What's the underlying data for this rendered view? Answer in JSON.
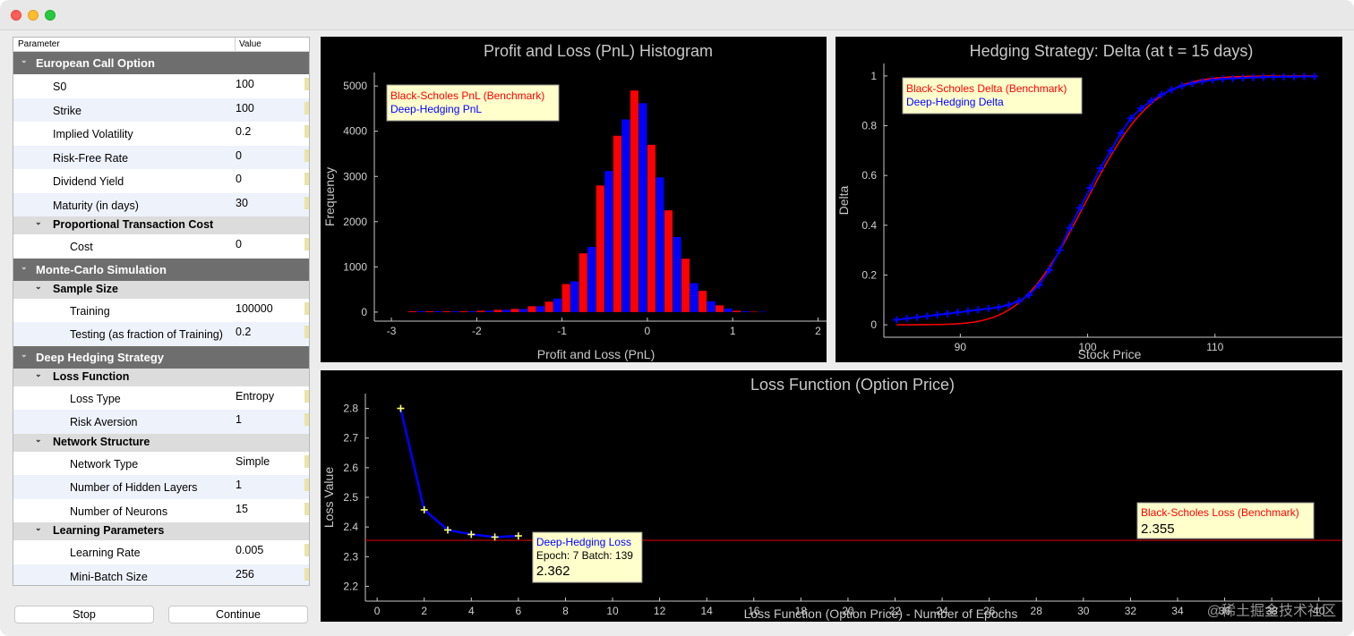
{
  "window": {
    "close": "close",
    "minimize": "minimize",
    "maximize": "maximize"
  },
  "tree": {
    "headers": {
      "parameter": "Parameter",
      "value": "Value"
    },
    "rows": [
      {
        "kind": "group",
        "label": "European Call Option",
        "depth": 0
      },
      {
        "kind": "item",
        "label": "S0",
        "value": "100",
        "depth": 1
      },
      {
        "kind": "item",
        "label": "Strike",
        "value": "100",
        "depth": 1
      },
      {
        "kind": "item",
        "label": "Implied Volatility",
        "value": "0.2",
        "depth": 1
      },
      {
        "kind": "item",
        "label": "Risk-Free Rate",
        "value": "0",
        "depth": 1
      },
      {
        "kind": "item",
        "label": "Dividend Yield",
        "value": "0",
        "depth": 1
      },
      {
        "kind": "item",
        "label": "Maturity (in days)",
        "value": "30",
        "depth": 1
      },
      {
        "kind": "sub",
        "label": "Proportional Transaction Cost",
        "depth": 1
      },
      {
        "kind": "item",
        "label": "Cost",
        "value": "0",
        "depth": 2
      },
      {
        "kind": "group",
        "label": "Monte-Carlo Simulation",
        "depth": 0
      },
      {
        "kind": "sub",
        "label": "Sample Size",
        "depth": 1
      },
      {
        "kind": "item",
        "label": "Training",
        "value": "100000",
        "depth": 2
      },
      {
        "kind": "item",
        "label": "Testing (as fraction of Training)",
        "value": "0.2",
        "depth": 2
      },
      {
        "kind": "group",
        "label": "Deep Hedging Strategy",
        "depth": 0
      },
      {
        "kind": "sub",
        "label": "Loss Function",
        "depth": 1
      },
      {
        "kind": "item",
        "label": "Loss Type",
        "value": "Entropy",
        "depth": 2
      },
      {
        "kind": "item",
        "label": "Risk Aversion",
        "value": "1",
        "depth": 2
      },
      {
        "kind": "sub",
        "label": "Network Structure",
        "depth": 1
      },
      {
        "kind": "item",
        "label": "Network Type",
        "value": "Simple",
        "depth": 2
      },
      {
        "kind": "item",
        "label": "Number of Hidden Layers",
        "value": "1",
        "depth": 2
      },
      {
        "kind": "item",
        "label": "Number of Neurons",
        "value": "15",
        "depth": 2
      },
      {
        "kind": "sub",
        "label": "Learning Parameters",
        "depth": 1
      },
      {
        "kind": "item",
        "label": "Learning Rate",
        "value": "0.005",
        "depth": 2
      },
      {
        "kind": "item",
        "label": "Mini-Batch Size",
        "value": "256",
        "depth": 2
      }
    ]
  },
  "buttons": {
    "stop": "Stop",
    "continue": "Continue"
  },
  "colors": {
    "benchmark": "#ff0000",
    "deep": "#0000ff",
    "marker": "#ffff66",
    "legend_bg": "#ffffcc",
    "axis": "#c8c8c8"
  },
  "watermark": "@稀土掘金技术社区",
  "chart_data": [
    {
      "type": "bar",
      "title": "Profit and Loss (PnL) Histogram",
      "xlabel": "Profit and Loss (PnL)",
      "ylabel": "Frequency",
      "xlim": [
        -3.2,
        2.1
      ],
      "ylim": [
        -200,
        5300
      ],
      "xticks": [
        -3,
        -2,
        -1,
        0,
        1,
        2
      ],
      "yticks": [
        0,
        1000,
        2000,
        3000,
        4000,
        5000
      ],
      "bin_width": 0.2,
      "bin_centers": [
        -2.7,
        -2.5,
        -2.3,
        -2.1,
        -1.9,
        -1.7,
        -1.5,
        -1.3,
        -1.1,
        -0.9,
        -0.7,
        -0.5,
        -0.3,
        -0.1,
        0.1,
        0.3,
        0.5,
        0.7,
        0.9,
        1.1,
        1.3
      ],
      "series": [
        {
          "name": "Black-Scholes PnL (Benchmark)",
          "values": [
            20,
            20,
            20,
            20,
            30,
            50,
            70,
            130,
            230,
            620,
            1300,
            2800,
            3900,
            4900,
            3700,
            2250,
            1180,
            470,
            150,
            30,
            10
          ]
        },
        {
          "name": "Deep-Hedging PnL",
          "values": [
            20,
            20,
            20,
            20,
            30,
            50,
            70,
            130,
            300,
            680,
            1440,
            3120,
            4260,
            4620,
            2980,
            1660,
            640,
            240,
            80,
            20,
            10
          ]
        }
      ],
      "legend": "top-left"
    },
    {
      "type": "line",
      "title": "Hedging Strategy: Delta (at t = 15 days)",
      "xlabel": "Stock Price",
      "ylabel": "Delta",
      "xlim": [
        84,
        120
      ],
      "ylim": [
        -0.05,
        1.05
      ],
      "xticks": [
        90,
        100,
        110
      ],
      "yticks": [
        0,
        0.2,
        0.4,
        0.6,
        0.8,
        1
      ],
      "ytick_labels": [
        "0",
        "0.2",
        "0.4",
        "0.6",
        "0.8",
        "1"
      ],
      "series": [
        {
          "name": "Black-Scholes Delta (Benchmark)",
          "function": "bs_delta",
          "x_range": [
            85,
            118
          ],
          "strike": 100,
          "vol": 0.2,
          "tau_days": 15
        },
        {
          "name": "Deep-Hedging Delta",
          "x": [
            85,
            85.8,
            86.6,
            87.4,
            88.2,
            89,
            89.8,
            90.6,
            91.4,
            92.2,
            93,
            93.8,
            94.6,
            95.4,
            96.2,
            97,
            97.8,
            98.6,
            99.4,
            100.2,
            101,
            101.8,
            102.6,
            103.4,
            104.2,
            105,
            105.8,
            106.6,
            107.4,
            108.2,
            109,
            109.8,
            110.6,
            111.4,
            112.2,
            113,
            113.8,
            114.6,
            115.4,
            116.2,
            117,
            117.8
          ],
          "y": [
            0.02,
            0.025,
            0.03,
            0.035,
            0.04,
            0.045,
            0.05,
            0.055,
            0.06,
            0.065,
            0.07,
            0.08,
            0.095,
            0.12,
            0.16,
            0.22,
            0.3,
            0.39,
            0.47,
            0.55,
            0.63,
            0.7,
            0.77,
            0.83,
            0.87,
            0.9,
            0.925,
            0.945,
            0.96,
            0.97,
            0.978,
            0.984,
            0.988,
            0.99,
            0.992,
            0.994,
            0.995,
            0.996,
            0.997,
            0.997,
            0.998,
            0.998
          ]
        }
      ],
      "legend": "top-left"
    },
    {
      "type": "line",
      "title": "Loss Function (Option Price)",
      "xlabel": "Loss Function (Option Price) - Number of Epochs",
      "ylabel": "Loss Value",
      "xlim": [
        -0.5,
        41
      ],
      "ylim": [
        2.15,
        2.85
      ],
      "xticks": [
        0,
        2,
        4,
        6,
        8,
        10,
        12,
        14,
        16,
        18,
        20,
        22,
        24,
        26,
        28,
        30,
        32,
        34,
        36,
        38,
        40
      ],
      "yticks": [
        2.2,
        2.3,
        2.4,
        2.5,
        2.6,
        2.7,
        2.8
      ],
      "series": [
        {
          "name": "Deep-Hedging Loss",
          "x": [
            1,
            2,
            3,
            4,
            5,
            6
          ],
          "y": [
            2.8,
            2.458,
            2.39,
            2.375,
            2.366,
            2.37
          ]
        },
        {
          "name": "Black-Scholes Loss (Benchmark)",
          "hline": 2.355
        }
      ],
      "annotations": [
        {
          "series": "Deep-Hedging Loss",
          "title": "Deep-Hedging Loss",
          "detail": "Epoch: 7 Batch: 139",
          "value": "2.362"
        },
        {
          "series": "Black-Scholes Loss (Benchmark)",
          "title": "Black-Scholes Loss (Benchmark)",
          "value": "2.355"
        }
      ]
    }
  ]
}
